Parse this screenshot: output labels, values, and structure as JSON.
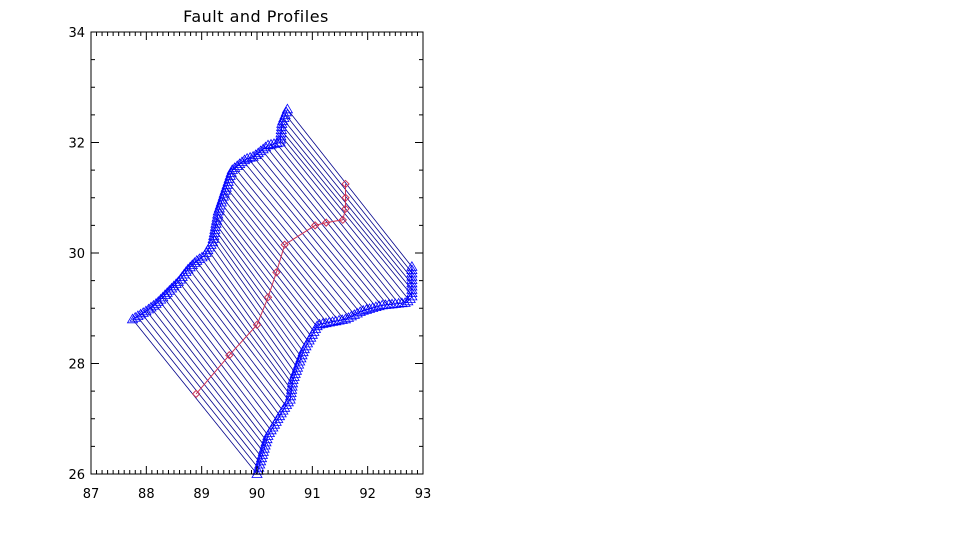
{
  "chart_data": {
    "type": "line",
    "title": "Fault and Profiles",
    "xlabel": "",
    "ylabel": "",
    "xlim": [
      87,
      93
    ],
    "ylim": [
      26,
      34
    ],
    "x_ticks": [
      "87",
      "88",
      "89",
      "90",
      "91",
      "92",
      "93"
    ],
    "y_ticks": [
      "26",
      "28",
      "30",
      "32",
      "34"
    ],
    "grid": false,
    "colors": {
      "profiles": "#00008b",
      "markers": "#0000ff",
      "fault": "#cc3355",
      "axes": "#000000"
    },
    "profile_count": 52,
    "fault_line": {
      "marker": "diamond",
      "x": [
        88.9,
        89.5,
        90.0,
        90.2,
        90.35,
        90.5,
        91.05,
        91.25,
        91.55,
        91.6,
        91.6,
        91.6
      ],
      "y": [
        27.45,
        28.15,
        28.7,
        29.2,
        29.65,
        30.15,
        30.5,
        30.55,
        30.6,
        30.8,
        31.0,
        31.25
      ]
    },
    "left_boundary": {
      "marker": "triangle",
      "x": [
        90.55,
        90.45,
        90.42,
        90.2,
        89.95,
        89.8,
        89.55,
        89.3,
        89.2,
        89.05,
        88.9,
        88.75,
        88.6,
        88.4,
        88.2,
        88.0,
        87.75
      ],
      "y": [
        32.6,
        32.35,
        32.0,
        31.95,
        31.75,
        31.7,
        31.5,
        30.75,
        30.2,
        29.95,
        29.85,
        29.7,
        29.5,
        29.3,
        29.1,
        28.95,
        28.8
      ]
    },
    "right_boundary": {
      "marker": "triangle",
      "x": [
        92.8,
        92.8,
        92.7,
        92.25,
        91.9,
        91.6,
        91.1,
        90.85,
        90.65,
        90.6,
        90.5,
        90.2,
        90.0
      ],
      "y": [
        29.75,
        29.2,
        29.1,
        29.05,
        28.95,
        28.8,
        28.7,
        28.25,
        27.7,
        27.35,
        27.2,
        26.7,
        26.0
      ]
    }
  }
}
